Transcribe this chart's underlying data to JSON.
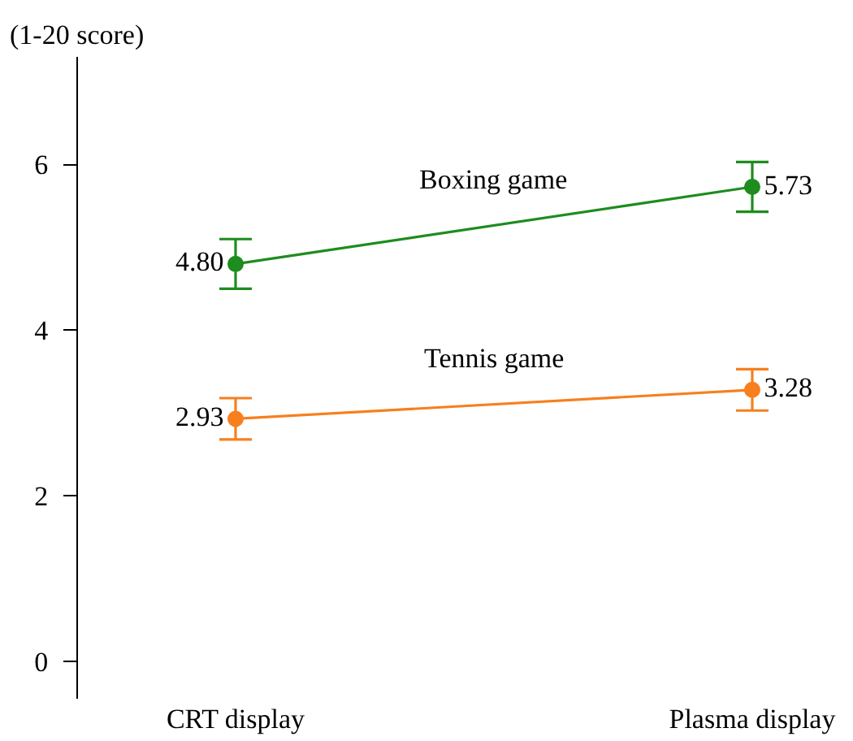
{
  "chart_data": {
    "type": "line",
    "ylabel": "(1-20 score)",
    "categories": [
      "CRT display",
      "Plasma display"
    ],
    "series": [
      {
        "name": "Boxing game",
        "color": "#1e8c1e",
        "values": [
          4.8,
          5.73
        ],
        "value_labels": [
          "4.80",
          "5.73"
        ],
        "errors": [
          0.3,
          0.3
        ]
      },
      {
        "name": "Tennis game",
        "color": "#f77f1e",
        "values": [
          2.93,
          3.28
        ],
        "value_labels": [
          "2.93",
          "3.28"
        ],
        "errors": [
          0.25,
          0.25
        ]
      }
    ],
    "ylim": [
      -0.45,
      7.3
    ],
    "yticks": [
      0,
      2,
      4,
      6
    ],
    "legend": false,
    "marker": "circle",
    "line_style": "solid"
  }
}
